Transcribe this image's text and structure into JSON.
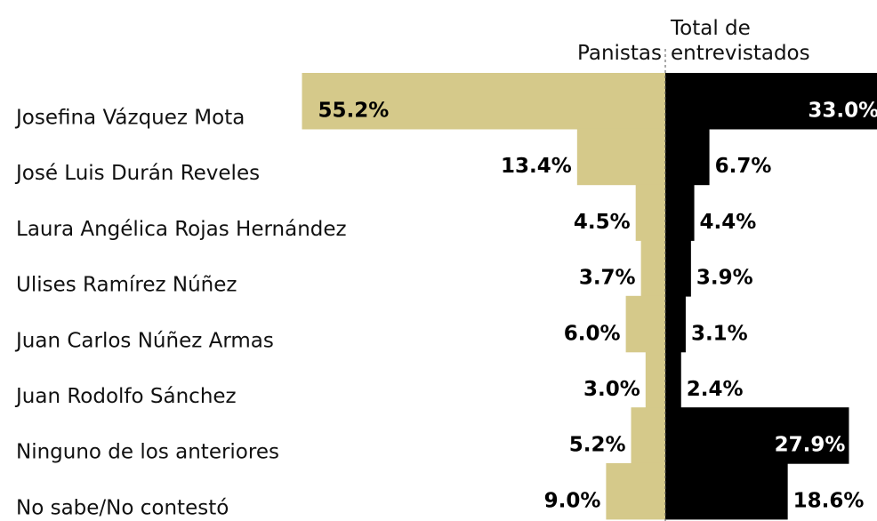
{
  "chart_data": {
    "type": "bar",
    "orientation": "horizontal",
    "categories": [
      "Josefina Vázquez Mota",
      "José Luis Durán Reveles",
      "Laura Angélica Rojas Hernández",
      "Ulises Ramírez Núñez",
      "Juan Carlos Núñez Armas",
      "Juan Rodolfo Sánchez",
      "Ninguno de los anteriores",
      "No sabe/No contestó"
    ],
    "series": [
      {
        "name": "Panistas",
        "color": "#d5c98a",
        "values": [
          55.2,
          13.4,
          4.5,
          3.7,
          6.0,
          3.0,
          5.2,
          9.0
        ],
        "value_labels": [
          "55.2%",
          "13.4%",
          "4.5%",
          "3.7%",
          "6.0%",
          "3.0%",
          "5.2%",
          "9.0%"
        ]
      },
      {
        "name": "Total de entrevistados",
        "color": "#000000",
        "values": [
          33.0,
          6.7,
          4.4,
          3.9,
          3.1,
          2.4,
          27.9,
          18.6
        ],
        "value_labels": [
          "33.0%",
          "6.7%",
          "4.4%",
          "3.9%",
          "3.1%",
          "2.4%",
          "27.9%",
          "18.6%"
        ]
      }
    ]
  }
}
